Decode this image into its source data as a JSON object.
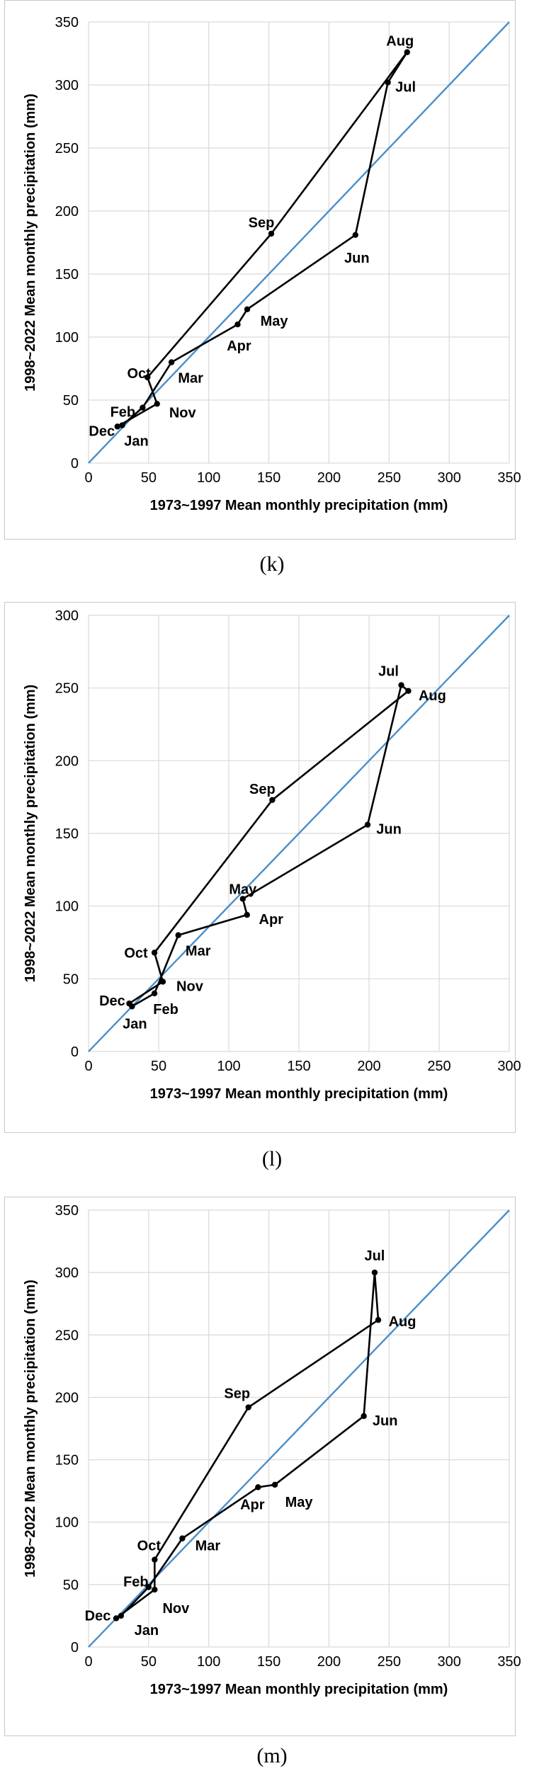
{
  "chart_data": [
    {
      "type": "scatter",
      "caption": "(k)",
      "xlabel": "1973~1997 Mean monthly precipitation (mm)",
      "ylabel": "1998~2022 Mean monthly precipitation (mm)",
      "xlim": [
        0,
        350
      ],
      "ylim": [
        0,
        350
      ],
      "xticks": [
        0,
        50,
        100,
        150,
        200,
        250,
        300,
        350
      ],
      "yticks": [
        0,
        50,
        100,
        150,
        200,
        250,
        300,
        350
      ],
      "grid": true,
      "reference_line": "y = x",
      "points": [
        {
          "label": "Jan",
          "x": 28,
          "y": 30
        },
        {
          "label": "Feb",
          "x": 45,
          "y": 44
        },
        {
          "label": "Mar",
          "x": 69,
          "y": 80
        },
        {
          "label": "Apr",
          "x": 124,
          "y": 110
        },
        {
          "label": "May",
          "x": 132,
          "y": 122
        },
        {
          "label": "Jun",
          "x": 222,
          "y": 181
        },
        {
          "label": "Jul",
          "x": 249,
          "y": 302
        },
        {
          "label": "Aug",
          "x": 265,
          "y": 326
        },
        {
          "label": "Sep",
          "x": 152,
          "y": 182
        },
        {
          "label": "Oct",
          "x": 49,
          "y": 68
        },
        {
          "label": "Nov",
          "x": 57,
          "y": 47
        },
        {
          "label": "Dec",
          "x": 24,
          "y": 29
        }
      ]
    },
    {
      "type": "scatter",
      "caption": "(l)",
      "xlabel": "1973~1997 Mean monthly precipitation (mm)",
      "ylabel": "1998~2022 Mean monthly precipitation (mm)",
      "xlim": [
        0,
        300
      ],
      "ylim": [
        0,
        300
      ],
      "xticks": [
        0,
        50,
        100,
        150,
        200,
        250,
        300
      ],
      "yticks": [
        0,
        50,
        100,
        150,
        200,
        250,
        300
      ],
      "grid": true,
      "reference_line": "y = x",
      "points": [
        {
          "label": "Jan",
          "x": 31,
          "y": 31
        },
        {
          "label": "Feb",
          "x": 47,
          "y": 40
        },
        {
          "label": "Mar",
          "x": 64,
          "y": 80
        },
        {
          "label": "Apr",
          "x": 113,
          "y": 94
        },
        {
          "label": "May",
          "x": 110,
          "y": 105
        },
        {
          "label": "Jun",
          "x": 199,
          "y": 156
        },
        {
          "label": "Jul",
          "x": 223,
          "y": 252
        },
        {
          "label": "Aug",
          "x": 228,
          "y": 248
        },
        {
          "label": "Sep",
          "x": 131,
          "y": 173
        },
        {
          "label": "Oct",
          "x": 47,
          "y": 68
        },
        {
          "label": "Nov",
          "x": 53,
          "y": 48
        },
        {
          "label": "Dec",
          "x": 29,
          "y": 33
        }
      ]
    },
    {
      "type": "scatter",
      "caption": "(m)",
      "xlabel": "1973~1997 Mean monthly precipitation (mm)",
      "ylabel": "1998~2022 Mean monthly precipitation (mm)",
      "xlim": [
        0,
        350
      ],
      "ylim": [
        0,
        350
      ],
      "xticks": [
        0,
        50,
        100,
        150,
        200,
        250,
        300,
        350
      ],
      "yticks": [
        0,
        50,
        100,
        150,
        200,
        250,
        300,
        350
      ],
      "grid": true,
      "reference_line": "y = x",
      "points": [
        {
          "label": "Jan",
          "x": 27,
          "y": 25
        },
        {
          "label": "Feb",
          "x": 50,
          "y": 48
        },
        {
          "label": "Mar",
          "x": 78,
          "y": 87
        },
        {
          "label": "Apr",
          "x": 141,
          "y": 128
        },
        {
          "label": "May",
          "x": 155,
          "y": 130
        },
        {
          "label": "Jun",
          "x": 229,
          "y": 185
        },
        {
          "label": "Jul",
          "x": 238,
          "y": 300
        },
        {
          "label": "Aug",
          "x": 241,
          "y": 262
        },
        {
          "label": "Sep",
          "x": 133,
          "y": 192
        },
        {
          "label": "Oct",
          "x": 55,
          "y": 70
        },
        {
          "label": "Nov",
          "x": 55,
          "y": 46
        },
        {
          "label": "Dec",
          "x": 23,
          "y": 23
        }
      ]
    }
  ]
}
